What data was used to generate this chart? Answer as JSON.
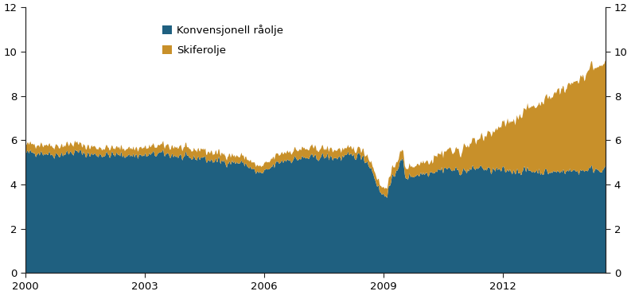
{
  "title": "",
  "xlabel": "",
  "ylabel": "",
  "xlim_start": 2000.0,
  "xlim_end": 2014.58,
  "ylim": [
    0,
    12
  ],
  "yticks": [
    0,
    2,
    4,
    6,
    8,
    10,
    12
  ],
  "xticks": [
    2000,
    2003,
    2006,
    2009,
    2012
  ],
  "color_conventional": "#1f6080",
  "color_shale": "#c8902a",
  "legend_conventional": "Konvensjonell råolje",
  "legend_shale": "Skiferolje",
  "background_color": "#ffffff",
  "spine_color": "#222222",
  "tick_color": "#222222"
}
